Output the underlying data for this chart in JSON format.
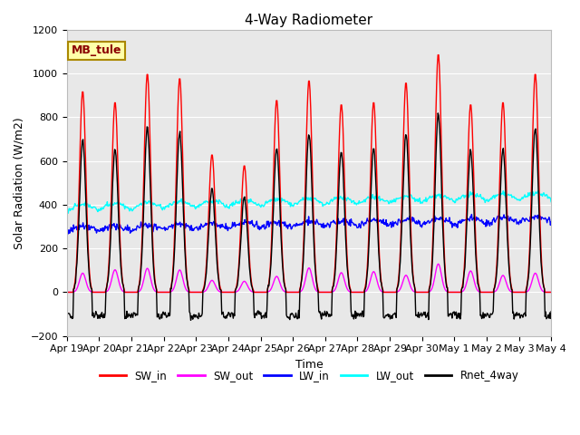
{
  "title": "4-Way Radiometer",
  "xlabel": "Time",
  "ylabel": "Solar Radiation (W/m2)",
  "ylim": [
    -200,
    1200
  ],
  "yticks": [
    -200,
    0,
    200,
    400,
    600,
    800,
    1000,
    1200
  ],
  "annotation_text": "MB_tule",
  "annotation_bg": "#FFFFAA",
  "annotation_border": "#AA8800",
  "colors": {
    "SW_in": "#FF0000",
    "SW_out": "#FF00FF",
    "LW_in": "#0000FF",
    "LW_out": "#00FFFF",
    "Rnet_4way": "#000000"
  },
  "xtick_labels": [
    "Apr 19",
    "Apr 20",
    "Apr 21",
    "Apr 22",
    "Apr 23",
    "Apr 24",
    "Apr 25",
    "Apr 26",
    "Apr 27",
    "Apr 28",
    "Apr 29",
    "Apr 30",
    "May 1",
    "May 2",
    "May 3",
    "May 4"
  ],
  "background_color": "#E8E8E8",
  "grid_color": "#FFFFFF",
  "linewidth": 1.0
}
